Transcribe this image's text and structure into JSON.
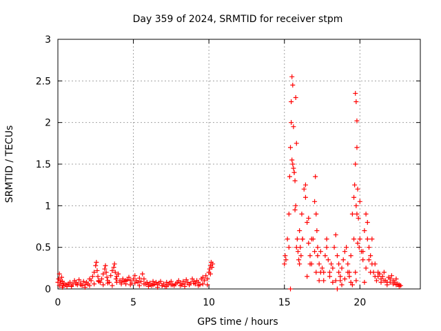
{
  "chart_data": {
    "type": "scatter",
    "title": "Day 359 of 2024, SRMTID for receiver stpm",
    "xlabel": "GPS time / hours",
    "ylabel": "SRMTID / TECUs",
    "xlim": [
      0,
      24
    ],
    "ylim": [
      0,
      3
    ],
    "x_ticks": [
      0,
      5,
      10,
      15,
      20
    ],
    "x_tick_labels": [
      "0",
      "5",
      "10",
      "15",
      "20"
    ],
    "y_ticks": [
      0,
      0.5,
      1,
      1.5,
      2,
      2.5,
      3
    ],
    "y_tick_labels": [
      "0",
      "0.5",
      "1",
      "1.5",
      "2",
      "2.5",
      "3"
    ],
    "grid": true,
    "marker": "plus",
    "series_color": "#ff0000",
    "series": [
      {
        "x": [
          0.0,
          0.05,
          0.1,
          0.15,
          0.2,
          0.25,
          0.3,
          0.35,
          0.4,
          0.5,
          0.6,
          0.7,
          0.8,
          0.9,
          1.0,
          1.1,
          1.2,
          1.3,
          1.4,
          1.5,
          1.6,
          1.7,
          1.8,
          1.9,
          2.0,
          2.1,
          2.2,
          2.3,
          2.4,
          2.5,
          2.55,
          2.6,
          2.65,
          2.7,
          2.8,
          2.9,
          3.0,
          3.1,
          3.15,
          3.2,
          3.25,
          3.3,
          3.4,
          3.5,
          3.6,
          3.7,
          3.75,
          3.8,
          3.85,
          3.9,
          4.0,
          4.1,
          4.2,
          4.3,
          4.4,
          4.5,
          4.6,
          4.7,
          4.8,
          4.9,
          5.0,
          5.1,
          5.2,
          5.3,
          5.4,
          5.5,
          5.6,
          5.7,
          5.8,
          5.9,
          6.0,
          6.1,
          6.2,
          6.3,
          6.4,
          6.5,
          6.6,
          6.7,
          6.8,
          6.9,
          7.0,
          7.1,
          7.2,
          7.3,
          7.4,
          7.5,
          7.6,
          7.7,
          7.8,
          7.9,
          8.0,
          8.1,
          8.2,
          8.3,
          8.4,
          8.5,
          8.6,
          8.7,
          8.8,
          8.9,
          9.0,
          9.1,
          9.2,
          9.3,
          9.4,
          9.5,
          9.6,
          9.7,
          9.8,
          9.9,
          10.0,
          10.05,
          10.1,
          10.15,
          10.2,
          10.25,
          0.1,
          0.3,
          0.6,
          0.9,
          1.2,
          1.5,
          1.8,
          2.1,
          2.4,
          2.7,
          3.0,
          3.3,
          3.6,
          3.9,
          4.2,
          4.5,
          4.8,
          5.1,
          5.4,
          5.7,
          6.0,
          6.3,
          6.6,
          6.9,
          7.2,
          7.5,
          7.8,
          8.1,
          8.4,
          8.7,
          9.0,
          9.3,
          9.6,
          9.9,
          10.1
        ],
        "y": [
          0.08,
          0.12,
          0.18,
          0.1,
          0.06,
          0.14,
          0.09,
          0.04,
          0.07,
          0.05,
          0.03,
          0.06,
          0.08,
          0.04,
          0.06,
          0.1,
          0.08,
          0.05,
          0.11,
          0.07,
          0.04,
          0.09,
          0.05,
          0.08,
          0.06,
          0.12,
          0.1,
          0.15,
          0.2,
          0.28,
          0.32,
          0.22,
          0.15,
          0.1,
          0.08,
          0.12,
          0.18,
          0.24,
          0.28,
          0.2,
          0.14,
          0.1,
          0.08,
          0.16,
          0.22,
          0.26,
          0.3,
          0.2,
          0.12,
          0.15,
          0.18,
          0.1,
          0.08,
          0.12,
          0.09,
          0.06,
          0.11,
          0.14,
          0.1,
          0.07,
          0.12,
          0.16,
          0.1,
          0.08,
          0.13,
          0.09,
          0.18,
          0.12,
          0.06,
          0.08,
          0.05,
          0.07,
          0.04,
          0.09,
          0.06,
          0.08,
          0.05,
          0.07,
          0.09,
          0.04,
          0.06,
          0.03,
          0.08,
          0.05,
          0.07,
          0.09,
          0.05,
          0.04,
          0.06,
          0.08,
          0.1,
          0.07,
          0.05,
          0.09,
          0.06,
          0.11,
          0.08,
          0.05,
          0.07,
          0.12,
          0.09,
          0.06,
          0.1,
          0.08,
          0.05,
          0.12,
          0.14,
          0.1,
          0.16,
          0.12,
          0.2,
          0.24,
          0.28,
          0.32,
          0.26,
          0.3,
          0.04,
          0.02,
          0.05,
          0.03,
          0.06,
          0.05,
          0.02,
          0.04,
          0.06,
          0.09,
          0.05,
          0.07,
          0.04,
          0.08,
          0.06,
          0.1,
          0.05,
          0.07,
          0.04,
          0.06,
          0.03,
          0.05,
          0.02,
          0.04,
          0.03,
          0.05,
          0.06,
          0.04,
          0.03,
          0.05,
          0.07,
          0.04,
          0.06,
          0.05,
          0.18
        ]
      },
      {
        "x": [
          15.0,
          15.05,
          15.1,
          15.2,
          15.3,
          15.35,
          15.4,
          15.45,
          15.5,
          15.55,
          15.6,
          15.65,
          15.7,
          15.75,
          15.8,
          15.85,
          15.9,
          15.95,
          16.0,
          16.05,
          16.1,
          16.15,
          16.2,
          16.3,
          16.4,
          16.5,
          16.6,
          16.7,
          16.8,
          16.9,
          17.0,
          17.05,
          17.1,
          17.15,
          17.2,
          17.3,
          17.4,
          17.5,
          17.6,
          17.7,
          17.8,
          17.9,
          18.0,
          18.1,
          18.2,
          18.3,
          18.4,
          18.5,
          18.6,
          18.7,
          18.8,
          18.9,
          19.0,
          19.1,
          19.2,
          19.3,
          19.4,
          19.5,
          19.6,
          19.65,
          19.7,
          19.75,
          19.8,
          19.85,
          19.9,
          19.95,
          20.0,
          20.1,
          20.2,
          20.3,
          20.4,
          20.5,
          20.6,
          20.7,
          20.8,
          20.9,
          21.0,
          21.1,
          21.2,
          21.3,
          21.4,
          21.5,
          21.6,
          21.7,
          21.8,
          21.9,
          22.0,
          22.1,
          22.2,
          22.3,
          22.4,
          22.5,
          22.6,
          22.7,
          15.45,
          15.55,
          15.65,
          15.75,
          15.5,
          15.6,
          15.7,
          15.8,
          16.0,
          16.2,
          16.4,
          16.6,
          16.8,
          17.0,
          17.2,
          17.4,
          17.6,
          17.8,
          18.0,
          18.2,
          18.4,
          18.6,
          18.8,
          19.0,
          19.2,
          19.4,
          19.6,
          19.8,
          20.0,
          20.2,
          20.4,
          20.6,
          20.8,
          21.0,
          21.2,
          21.4,
          21.6,
          21.8,
          22.0,
          22.2,
          22.4,
          22.6,
          19.7,
          19.75,
          19.8,
          19.85,
          19.7,
          19.75,
          15.3,
          15.4,
          16.5,
          16.7,
          17.1,
          17.3,
          18.5,
          18.7,
          19.3,
          19.5,
          20.3,
          20.5,
          20.7
        ],
        "y": [
          0.3,
          0.4,
          0.35,
          0.6,
          0.9,
          1.35,
          1.7,
          2.25,
          2.55,
          2.45,
          1.95,
          1.4,
          1.3,
          2.3,
          1.75,
          0.6,
          0.45,
          0.35,
          0.7,
          0.5,
          0.4,
          0.9,
          0.6,
          1.2,
          1.25,
          0.8,
          0.55,
          0.4,
          0.3,
          0.6,
          1.05,
          1.35,
          0.9,
          0.7,
          0.5,
          0.3,
          0.45,
          0.25,
          0.2,
          0.4,
          0.6,
          0.35,
          0.2,
          0.3,
          0.25,
          0.5,
          0.65,
          0.4,
          0.2,
          0.15,
          0.25,
          0.35,
          0.45,
          0.5,
          0.3,
          0.2,
          0.4,
          0.9,
          1.1,
          1.25,
          2.35,
          2.25,
          2.02,
          1.2,
          0.85,
          0.5,
          0.6,
          0.45,
          0.35,
          0.7,
          0.9,
          0.8,
          0.5,
          0.4,
          0.3,
          0.2,
          0.15,
          0.1,
          0.2,
          0.18,
          0.12,
          0.15,
          0.2,
          0.1,
          0.08,
          0.14,
          0.12,
          0.16,
          0.1,
          0.08,
          0.12,
          0.06,
          0.05,
          0.04,
          2.0,
          1.5,
          1.4,
          1.0,
          1.55,
          1.45,
          0.95,
          0.5,
          0.3,
          0.6,
          1.1,
          0.85,
          0.6,
          0.45,
          0.4,
          0.2,
          0.1,
          0.5,
          0.15,
          0.08,
          0.1,
          0.3,
          0.05,
          0.12,
          0.2,
          0.08,
          0.6,
          1.7,
          1.05,
          0.45,
          0.25,
          0.35,
          0.6,
          0.3,
          0.15,
          0.08,
          0.1,
          0.05,
          0.08,
          0.06,
          0.05,
          0.03,
          1.5,
          1.0,
          0.9,
          0.55,
          0.2,
          0.1,
          0.5,
          0.0,
          0.15,
          0.3,
          0.2,
          0.1,
          0.0,
          0.1,
          0.15,
          0.05,
          0.08,
          0.6,
          0.2
        ]
      }
    ]
  }
}
